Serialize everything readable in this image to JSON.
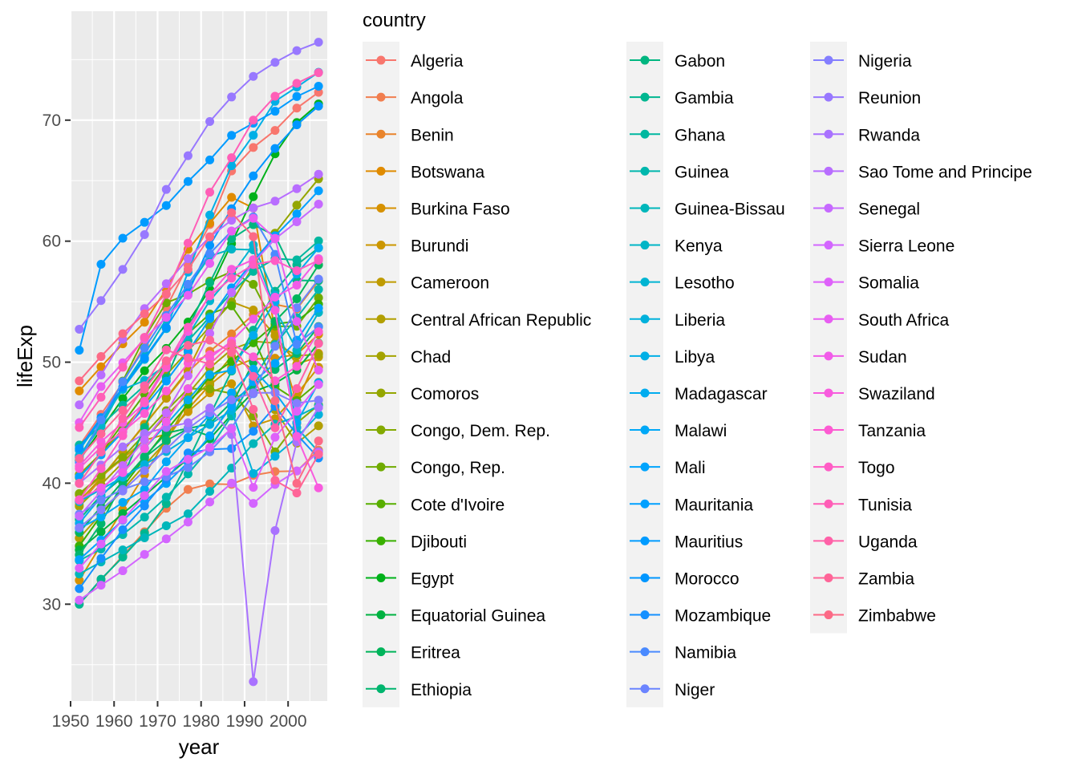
{
  "chart_data": {
    "type": "line",
    "title": "",
    "xlabel": "year",
    "ylabel": "lifeExp",
    "xlim": [
      1950,
      2009
    ],
    "ylim": [
      22,
      79
    ],
    "xticks": [
      1950,
      1960,
      1970,
      1980,
      1990,
      2000
    ],
    "yticks": [
      30,
      40,
      50,
      60,
      70
    ],
    "grid": true,
    "legend": {
      "title": "country",
      "position": "right",
      "columns": 3
    },
    "x": [
      1952,
      1957,
      1962,
      1967,
      1972,
      1977,
      1982,
      1987,
      1992,
      1997,
      2002,
      2007
    ],
    "series": [
      {
        "name": "Algeria",
        "color": "#F8766D",
        "values": [
          43.077,
          45.685,
          48.303,
          51.407,
          54.518,
          58.014,
          61.368,
          65.799,
          67.744,
          69.152,
          70.994,
          72.301
        ]
      },
      {
        "name": "Angola",
        "color": "#F17E4F",
        "values": [
          30.015,
          31.999,
          34.0,
          35.985,
          37.928,
          39.483,
          39.942,
          39.906,
          40.647,
          40.963,
          41.003,
          42.731
        ]
      },
      {
        "name": "Benin",
        "color": "#E9842C",
        "values": [
          38.223,
          40.358,
          42.618,
          44.885,
          47.014,
          49.19,
          50.904,
          52.337,
          53.919,
          54.777,
          54.406,
          56.728
        ]
      },
      {
        "name": "Botswana",
        "color": "#E08B00",
        "values": [
          47.622,
          49.618,
          51.52,
          53.298,
          56.024,
          59.319,
          61.484,
          63.622,
          62.745,
          52.556,
          46.634,
          50.728
        ]
      },
      {
        "name": "Burkina Faso",
        "color": "#D69100",
        "values": [
          31.975,
          34.906,
          37.814,
          40.697,
          43.591,
          46.137,
          48.122,
          49.557,
          50.26,
          50.324,
          50.65,
          52.295
        ]
      },
      {
        "name": "Burundi",
        "color": "#CB9600",
        "values": [
          39.031,
          40.533,
          42.045,
          43.548,
          44.057,
          45.91,
          47.471,
          48.211,
          44.736,
          45.326,
          47.36,
          49.58
        ]
      },
      {
        "name": "Cameroon",
        "color": "#BF9B00",
        "values": [
          38.523,
          40.428,
          42.643,
          44.799,
          47.049,
          49.355,
          52.961,
          54.985,
          54.314,
          52.199,
          49.856,
          50.43
        ]
      },
      {
        "name": "Central African Republic",
        "color": "#B29F00",
        "values": [
          35.463,
          37.464,
          39.475,
          41.478,
          43.457,
          46.775,
          48.295,
          50.485,
          49.396,
          46.066,
          43.308,
          44.741
        ]
      },
      {
        "name": "Chad",
        "color": "#A4A300",
        "values": [
          38.092,
          39.881,
          41.716,
          43.601,
          45.569,
          47.383,
          49.517,
          51.051,
          51.724,
          51.573,
          50.525,
          50.651
        ]
      },
      {
        "name": "Comoros",
        "color": "#94A600",
        "values": [
          40.715,
          42.46,
          44.467,
          46.472,
          48.944,
          50.939,
          52.933,
          54.926,
          57.939,
          60.66,
          62.974,
          65.152
        ]
      },
      {
        "name": "Congo, Dem. Rep.",
        "color": "#83A900",
        "values": [
          39.143,
          40.652,
          42.122,
          44.056,
          45.989,
          47.804,
          47.784,
          47.412,
          45.548,
          42.587,
          44.966,
          46.462
        ]
      },
      {
        "name": "Congo, Rep.",
        "color": "#70AB00",
        "values": [
          42.111,
          45.053,
          48.435,
          52.04,
          54.907,
          55.625,
          56.695,
          57.47,
          56.433,
          52.962,
          52.97,
          55.322
        ]
      },
      {
        "name": "Cote d'Ivoire",
        "color": "#58AE00",
        "values": [
          40.477,
          42.469,
          44.93,
          47.35,
          49.801,
          52.374,
          53.983,
          54.655,
          52.044,
          47.991,
          46.832,
          48.328
        ]
      },
      {
        "name": "Djibouti",
        "color": "#39B000",
        "values": [
          34.812,
          37.328,
          39.693,
          42.074,
          44.366,
          46.519,
          48.812,
          50.04,
          51.604,
          53.157,
          53.373,
          54.791
        ]
      },
      {
        "name": "Egypt",
        "color": "#00B11A",
        "values": [
          41.893,
          44.444,
          46.992,
          49.293,
          51.137,
          53.319,
          56.006,
          59.797,
          63.674,
          67.217,
          69.806,
          71.338
        ]
      },
      {
        "name": "Equatorial Guinea",
        "color": "#00B241",
        "values": [
          34.482,
          35.983,
          37.485,
          38.987,
          40.516,
          42.024,
          43.662,
          45.664,
          47.545,
          48.245,
          49.348,
          51.579
        ]
      },
      {
        "name": "Eritrea",
        "color": "#00B45A",
        "values": [
          35.928,
          38.047,
          40.158,
          42.189,
          44.142,
          44.535,
          43.89,
          46.453,
          49.991,
          53.378,
          55.24,
          58.04
        ]
      },
      {
        "name": "Ethiopia",
        "color": "#00B56E",
        "values": [
          34.078,
          36.667,
          40.059,
          42.115,
          43.515,
          44.51,
          44.916,
          46.684,
          48.091,
          49.402,
          50.725,
          52.947
        ]
      },
      {
        "name": "Gabon",
        "color": "#00B680",
        "values": [
          37.003,
          38.999,
          40.489,
          44.598,
          48.69,
          52.79,
          56.564,
          60.19,
          61.366,
          60.461,
          56.761,
          56.735
        ]
      },
      {
        "name": "Gambia",
        "color": "#00B690",
        "values": [
          30.0,
          32.065,
          33.896,
          35.857,
          38.308,
          41.842,
          45.58,
          49.265,
          52.644,
          55.861,
          58.041,
          59.448
        ]
      },
      {
        "name": "Ghana",
        "color": "#00B79F",
        "values": [
          43.149,
          44.779,
          46.452,
          48.072,
          49.875,
          51.756,
          53.744,
          55.729,
          57.501,
          58.556,
          58.453,
          60.022
        ]
      },
      {
        "name": "Guinea",
        "color": "#00B7AD",
        "values": [
          33.609,
          34.558,
          35.753,
          37.197,
          38.842,
          40.762,
          42.891,
          45.552,
          48.576,
          51.455,
          53.676,
          56.007
        ]
      },
      {
        "name": "Guinea-Bissau",
        "color": "#00B6BA",
        "values": [
          32.5,
          33.489,
          34.488,
          35.492,
          36.486,
          37.465,
          39.327,
          41.245,
          43.266,
          44.873,
          45.504,
          46.388
        ]
      },
      {
        "name": "Kenya",
        "color": "#00B5C6",
        "values": [
          42.27,
          44.686,
          47.949,
          50.654,
          53.559,
          56.155,
          58.766,
          59.339,
          59.285,
          54.407,
          50.992,
          54.11
        ]
      },
      {
        "name": "Lesotho",
        "color": "#00B4D2",
        "values": [
          42.138,
          45.047,
          47.747,
          48.492,
          49.767,
          52.208,
          55.078,
          57.18,
          59.685,
          55.558,
          44.593,
          42.592
        ]
      },
      {
        "name": "Liberia",
        "color": "#00B1DC",
        "values": [
          38.48,
          39.486,
          40.502,
          41.536,
          42.614,
          43.764,
          44.852,
          46.027,
          40.802,
          42.221,
          43.753,
          45.678
        ]
      },
      {
        "name": "Libya",
        "color": "#00AFE6",
        "values": [
          42.723,
          45.289,
          47.808,
          50.227,
          52.773,
          57.442,
          62.155,
          66.234,
          68.755,
          71.555,
          72.737,
          73.952
        ]
      },
      {
        "name": "Madagascar",
        "color": "#00ACEF",
        "values": [
          36.681,
          38.865,
          40.848,
          42.881,
          44.851,
          46.881,
          48.969,
          49.35,
          52.214,
          54.978,
          57.286,
          59.443
        ]
      },
      {
        "name": "Malawi",
        "color": "#00A8F7",
        "values": [
          36.256,
          37.207,
          38.41,
          39.487,
          41.766,
          43.767,
          45.642,
          47.457,
          49.42,
          47.495,
          45.009,
          48.303
        ]
      },
      {
        "name": "Mali",
        "color": "#00A4FD",
        "values": [
          33.685,
          35.307,
          36.936,
          38.487,
          39.977,
          41.714,
          43.916,
          46.364,
          48.388,
          49.903,
          51.818,
          54.467
        ]
      },
      {
        "name": "Mauritania",
        "color": "#00A0FF",
        "values": [
          40.543,
          42.338,
          44.248,
          46.289,
          48.437,
          50.852,
          53.599,
          56.145,
          58.333,
          60.43,
          62.247,
          64.164
        ]
      },
      {
        "name": "Mauritius",
        "color": "#009BFF",
        "values": [
          50.986,
          58.089,
          60.246,
          61.557,
          62.944,
          64.93,
          66.711,
          68.74,
          69.745,
          70.736,
          71.954,
          72.801
        ]
      },
      {
        "name": "Morocco",
        "color": "#0096FF",
        "values": [
          42.873,
          45.423,
          47.924,
          50.335,
          52.862,
          55.73,
          59.65,
          62.677,
          65.393,
          67.66,
          69.615,
          71.164
        ]
      },
      {
        "name": "Mozambique",
        "color": "#1590FF",
        "values": [
          31.286,
          33.779,
          36.161,
          38.113,
          40.328,
          42.495,
          42.795,
          42.861,
          44.284,
          46.344,
          44.026,
          42.082
        ]
      },
      {
        "name": "Namibia",
        "color": "#4A8AFF",
        "values": [
          41.725,
          45.226,
          48.386,
          51.159,
          53.867,
          56.437,
          58.968,
          60.835,
          61.999,
          58.909,
          51.479,
          52.906
        ]
      },
      {
        "name": "Niger",
        "color": "#6B84FF",
        "values": [
          37.444,
          38.598,
          39.487,
          40.118,
          40.546,
          41.291,
          42.598,
          44.555,
          47.391,
          51.313,
          54.496,
          56.867
        ]
      },
      {
        "name": "Nigeria",
        "color": "#847EFF",
        "values": [
          36.324,
          37.802,
          39.36,
          41.04,
          42.821,
          44.514,
          45.826,
          46.886,
          47.472,
          47.464,
          46.608,
          46.859
        ]
      },
      {
        "name": "Reunion",
        "color": "#9878FF",
        "values": [
          52.724,
          55.09,
          57.666,
          60.542,
          64.274,
          67.064,
          69.885,
          71.913,
          73.615,
          74.772,
          75.744,
          76.442
        ]
      },
      {
        "name": "Rwanda",
        "color": "#A972FF",
        "values": [
          40.0,
          41.5,
          43.0,
          44.1,
          44.6,
          45.0,
          46.218,
          44.02,
          23.599,
          36.087,
          43.413,
          46.242
        ]
      },
      {
        "name": "Sao Tome and Principe",
        "color": "#B86DFF",
        "values": [
          46.471,
          48.945,
          51.893,
          54.425,
          56.48,
          58.55,
          60.351,
          61.728,
          62.742,
          63.306,
          64.337,
          65.528
        ]
      },
      {
        "name": "Senegal",
        "color": "#C669FF",
        "values": [
          37.278,
          39.329,
          41.454,
          43.563,
          45.815,
          48.879,
          52.379,
          55.769,
          58.196,
          60.187,
          61.6,
          63.062
        ]
      },
      {
        "name": "Sierra Leone",
        "color": "#D365FF",
        "values": [
          30.331,
          31.57,
          32.767,
          34.113,
          35.4,
          36.788,
          38.445,
          40.006,
          38.333,
          39.897,
          41.012,
          42.568
        ]
      },
      {
        "name": "Somalia",
        "color": "#DE61FA",
        "values": [
          32.978,
          34.977,
          36.981,
          38.977,
          40.973,
          41.974,
          42.955,
          44.501,
          39.658,
          43.795,
          45.936,
          48.159
        ]
      },
      {
        "name": "South Africa",
        "color": "#E85EF2",
        "values": [
          45.009,
          47.985,
          49.951,
          51.927,
          53.696,
          55.527,
          58.161,
          60.834,
          61.888,
          60.236,
          53.365,
          49.339
        ]
      },
      {
        "name": "Sudan",
        "color": "#F15CE9",
        "values": [
          38.635,
          39.624,
          40.87,
          42.858,
          45.083,
          47.8,
          50.338,
          51.744,
          53.556,
          55.373,
          56.369,
          58.556
        ]
      },
      {
        "name": "Swaziland",
        "color": "#F85BDE",
        "values": [
          41.407,
          43.424,
          44.992,
          46.633,
          49.552,
          52.537,
          55.561,
          57.678,
          58.474,
          54.289,
          43.869,
          39.613
        ]
      },
      {
        "name": "Tanzania",
        "color": "#FD5BD2",
        "values": [
          41.215,
          42.974,
          44.246,
          45.757,
          47.62,
          49.919,
          50.608,
          51.535,
          50.44,
          48.466,
          49.651,
          52.517
        ]
      },
      {
        "name": "Togo",
        "color": "#FF5CC5",
        "values": [
          38.596,
          41.208,
          43.922,
          46.769,
          49.759,
          52.887,
          55.471,
          56.941,
          58.061,
          58.39,
          57.561,
          58.42
        ]
      },
      {
        "name": "Tunisia",
        "color": "#FF5EB7",
        "values": [
          44.6,
          47.1,
          49.579,
          52.053,
          55.602,
          59.837,
          64.048,
          66.894,
          70.001,
          71.973,
          73.042,
          73.923
        ]
      },
      {
        "name": "Uganda",
        "color": "#FF61A8",
        "values": [
          39.978,
          42.571,
          45.344,
          48.051,
          51.016,
          50.35,
          49.849,
          51.509,
          48.825,
          44.578,
          47.813,
          51.542
        ]
      },
      {
        "name": "Zambia",
        "color": "#FF6598",
        "values": [
          42.038,
          44.077,
          46.023,
          47.768,
          50.107,
          51.386,
          51.821,
          50.821,
          46.1,
          40.238,
          39.193,
          42.384
        ]
      },
      {
        "name": "Zimbabwe",
        "color": "#FC6A86",
        "values": [
          48.451,
          50.469,
          52.358,
          53.995,
          55.635,
          57.674,
          60.363,
          62.351,
          60.377,
          46.809,
          39.989,
          43.487
        ]
      }
    ]
  }
}
